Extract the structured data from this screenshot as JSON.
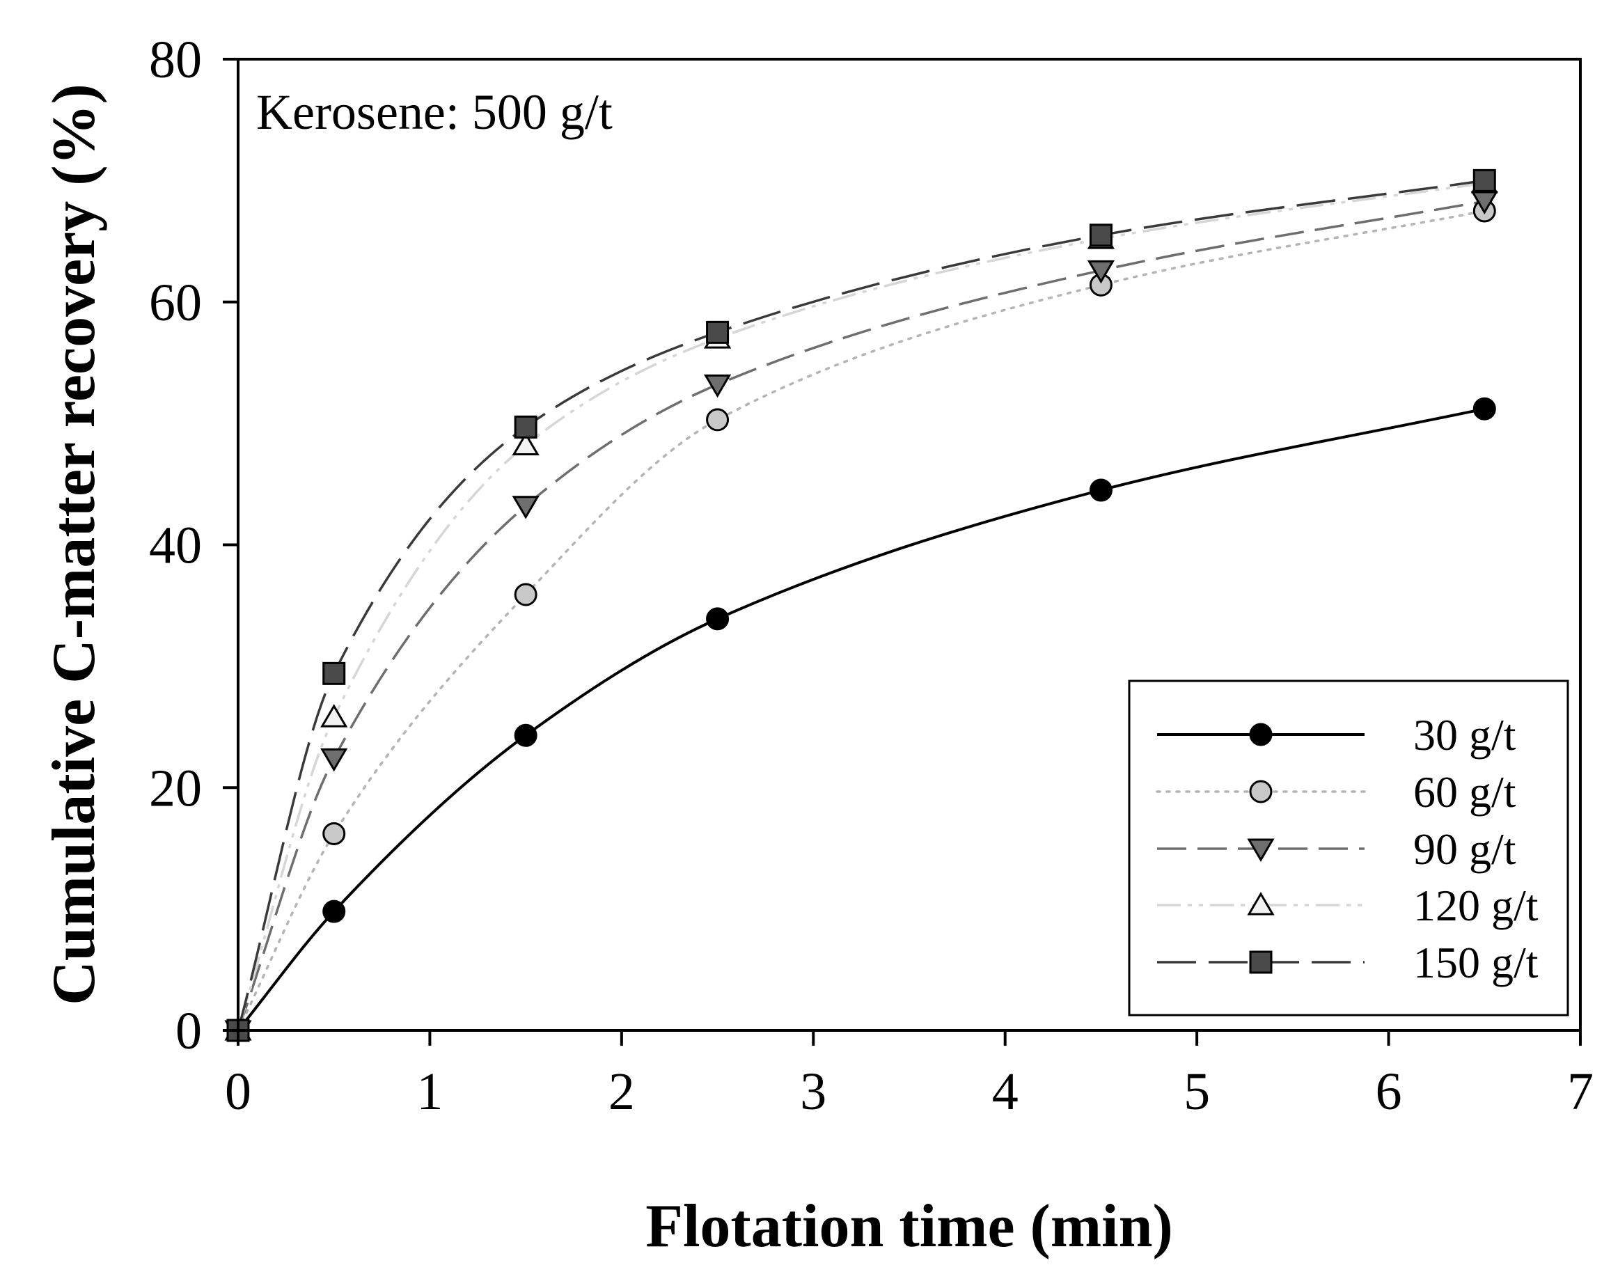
{
  "chart_data": {
    "type": "line",
    "title": "",
    "annotation": "Kerosene: 500 g/t",
    "xlabel": "Flotation time (min)",
    "ylabel": "Cumulative C-matter recovery (%)",
    "xlim": [
      0,
      7
    ],
    "ylim": [
      0,
      80
    ],
    "xticks": [
      "0",
      "1",
      "2",
      "3",
      "4",
      "5",
      "6",
      "7"
    ],
    "yticks": [
      "0",
      "20",
      "40",
      "60",
      "80"
    ],
    "grid": false,
    "legend_position": "bottom-right",
    "x": [
      0,
      0.5,
      1.5,
      2.5,
      4.5,
      6.5
    ],
    "series": [
      {
        "name": "30 g/t",
        "values": [
          0,
          9.8,
          24.3,
          33.9,
          44.5,
          51.2
        ],
        "marker": "circle",
        "marker_fill": "#000000",
        "line_color": "#000000",
        "line_style": "solid"
      },
      {
        "name": "60 g/t",
        "values": [
          0,
          16.2,
          35.9,
          50.3,
          61.4,
          67.5
        ],
        "marker": "circle",
        "marker_fill": "#c8c8c8",
        "line_color": "#b4b4b4",
        "line_style": "dotted"
      },
      {
        "name": "90 g/t",
        "values": [
          0,
          22.4,
          43.2,
          53.2,
          62.6,
          68.3
        ],
        "marker": "triangle-down",
        "marker_fill": "#6e6e6e",
        "line_color": "#6e6e6e",
        "line_style": "dashed"
      },
      {
        "name": "120 g/t",
        "values": [
          0,
          25.8,
          48.2,
          57.0,
          65.2,
          69.8
        ],
        "marker": "triangle-up",
        "marker_fill": "#f2f2f2",
        "line_color": "#d6d6d6",
        "line_style": "dash-dot-dot"
      },
      {
        "name": "150 g/t",
        "values": [
          0,
          29.4,
          49.7,
          57.5,
          65.5,
          70.0
        ],
        "marker": "square",
        "marker_fill": "#4a4a4a",
        "line_color": "#3a3a3a",
        "line_style": "long-dash"
      }
    ]
  }
}
